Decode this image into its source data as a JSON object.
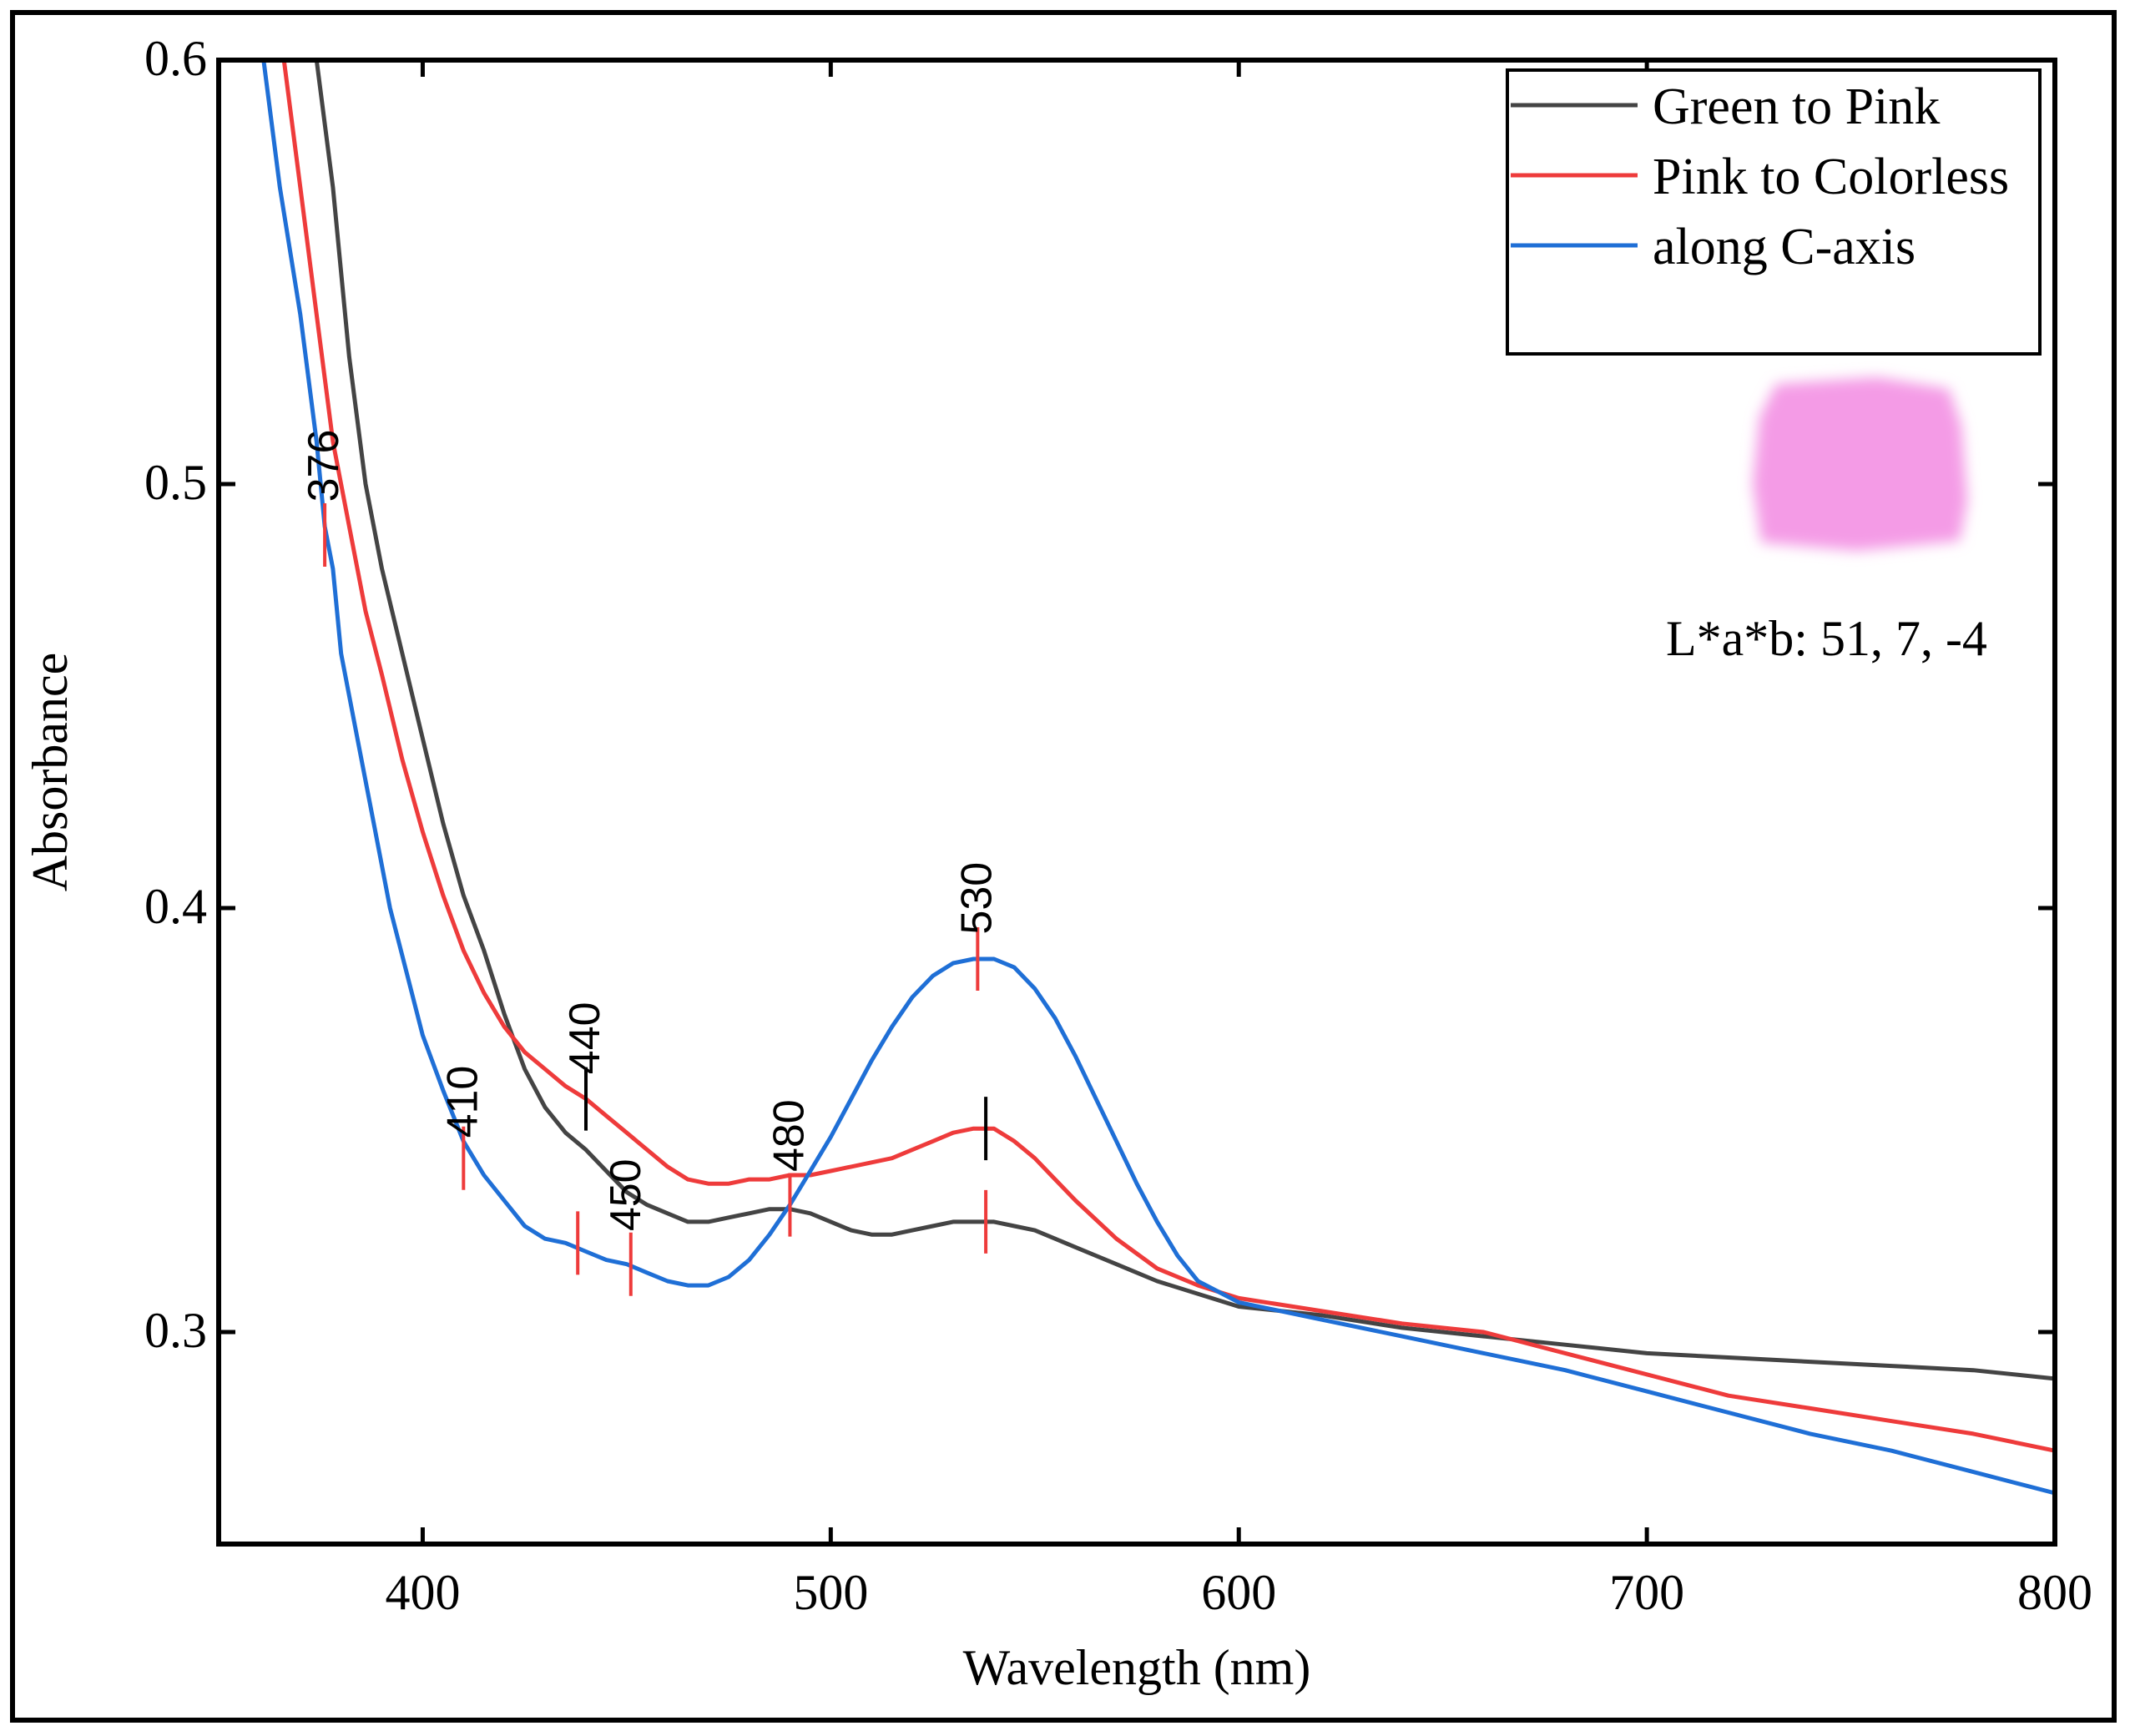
{
  "chart_data": {
    "type": "line",
    "xlabel": "Wavelength (nm)",
    "ylabel": "Absorbance",
    "xlim": [
      350,
      800
    ],
    "ylim": [
      0.25,
      0.6
    ],
    "xticks": [
      400,
      500,
      600,
      700,
      800
    ],
    "xtick_labels": [
      "400",
      "500",
      "600",
      "700",
      "800"
    ],
    "yticks": [
      0.3,
      0.4,
      0.5,
      0.6
    ],
    "ytick_labels": [
      "0.3",
      "0.4",
      "0.5",
      "0.6"
    ],
    "legend_position": "top-right",
    "series": [
      {
        "name": "Green to Pink",
        "color": "#444444",
        "x": [
          374,
          378,
          382,
          386,
          390,
          395,
          400,
          405,
          410,
          415,
          420,
          425,
          430,
          435,
          440,
          445,
          450,
          455,
          460,
          465,
          470,
          475,
          480,
          485,
          490,
          495,
          500,
          505,
          510,
          515,
          520,
          525,
          530,
          535,
          540,
          545,
          550,
          555,
          560,
          570,
          580,
          590,
          600,
          620,
          640,
          660,
          680,
          700,
          720,
          740,
          760,
          780,
          800
        ],
        "y": [
          0.6,
          0.57,
          0.53,
          0.5,
          0.48,
          0.46,
          0.44,
          0.42,
          0.403,
          0.39,
          0.375,
          0.362,
          0.353,
          0.347,
          0.343,
          0.338,
          0.333,
          0.33,
          0.328,
          0.326,
          0.326,
          0.327,
          0.328,
          0.329,
          0.329,
          0.328,
          0.326,
          0.324,
          0.323,
          0.323,
          0.324,
          0.325,
          0.326,
          0.326,
          0.326,
          0.325,
          0.324,
          0.322,
          0.32,
          0.316,
          0.312,
          0.309,
          0.306,
          0.304,
          0.301,
          0.299,
          0.297,
          0.295,
          0.294,
          0.293,
          0.292,
          0.291,
          0.289
        ]
      },
      {
        "name": "Pink to Colorless",
        "color": "#ee3b3b",
        "x": [
          366,
          370,
          374,
          378,
          382,
          386,
          390,
          395,
          400,
          405,
          410,
          415,
          420,
          425,
          430,
          435,
          440,
          445,
          450,
          455,
          460,
          465,
          470,
          475,
          480,
          485,
          490,
          495,
          500,
          505,
          510,
          515,
          520,
          525,
          530,
          535,
          540,
          545,
          550,
          555,
          560,
          570,
          580,
          590,
          600,
          620,
          640,
          660,
          680,
          700,
          720,
          740,
          760,
          780,
          800
        ],
        "y": [
          0.6,
          0.57,
          0.54,
          0.51,
          0.49,
          0.47,
          0.455,
          0.435,
          0.418,
          0.403,
          0.39,
          0.38,
          0.372,
          0.366,
          0.362,
          0.358,
          0.355,
          0.351,
          0.347,
          0.343,
          0.339,
          0.336,
          0.335,
          0.335,
          0.336,
          0.336,
          0.337,
          0.337,
          0.338,
          0.339,
          0.34,
          0.341,
          0.343,
          0.345,
          0.347,
          0.348,
          0.348,
          0.345,
          0.341,
          0.336,
          0.331,
          0.322,
          0.315,
          0.311,
          0.308,
          0.305,
          0.302,
          0.3,
          0.295,
          0.29,
          0.285,
          0.282,
          0.279,
          0.276,
          0.272
        ]
      },
      {
        "name": "along C-axis",
        "color": "#1f6fd6",
        "x": [
          361,
          365,
          370,
          374,
          376,
          378,
          380,
          384,
          388,
          392,
          396,
          400,
          405,
          410,
          415,
          420,
          425,
          430,
          435,
          440,
          445,
          450,
          455,
          460,
          465,
          470,
          475,
          480,
          485,
          490,
          495,
          500,
          505,
          510,
          515,
          520,
          525,
          530,
          535,
          540,
          545,
          550,
          555,
          560,
          565,
          570,
          575,
          580,
          585,
          590,
          600,
          620,
          640,
          660,
          680,
          700,
          720,
          740,
          760,
          780,
          800
        ],
        "y": [
          0.6,
          0.57,
          0.54,
          0.51,
          0.49,
          0.48,
          0.46,
          0.44,
          0.42,
          0.4,
          0.385,
          0.37,
          0.357,
          0.345,
          0.337,
          0.331,
          0.325,
          0.322,
          0.321,
          0.319,
          0.317,
          0.316,
          0.314,
          0.312,
          0.311,
          0.311,
          0.313,
          0.317,
          0.323,
          0.33,
          0.338,
          0.346,
          0.355,
          0.364,
          0.372,
          0.379,
          0.384,
          0.387,
          0.388,
          0.388,
          0.386,
          0.381,
          0.374,
          0.365,
          0.355,
          0.345,
          0.335,
          0.326,
          0.318,
          0.312,
          0.307,
          0.303,
          0.299,
          0.295,
          0.291,
          0.286,
          0.281,
          0.276,
          0.272,
          0.267,
          0.262
        ]
      }
    ],
    "annotations": [
      {
        "text": "376",
        "x": 376,
        "y": 0.495
      },
      {
        "text": "410",
        "x": 410,
        "y": 0.345
      },
      {
        "text": "440",
        "x": 440,
        "y": 0.36
      },
      {
        "text": "450",
        "x": 450,
        "y": 0.323
      },
      {
        "text": "480",
        "x": 490,
        "y": 0.337
      },
      {
        "text": "530",
        "x": 536,
        "y": 0.393
      }
    ],
    "marks": [
      {
        "x": 376,
        "y": 0.488,
        "color": "#ee3b3b"
      },
      {
        "x": 410,
        "y": 0.341,
        "color": "#ee3b3b"
      },
      {
        "x": 440,
        "y": 0.355,
        "color": "#000000"
      },
      {
        "x": 438,
        "y": 0.321,
        "color": "#ee3b3b"
      },
      {
        "x": 451,
        "y": 0.316,
        "color": "#ee3b3b"
      },
      {
        "x": 490,
        "y": 0.33,
        "color": "#ee3b3b"
      },
      {
        "x": 536,
        "y": 0.388,
        "color": "#ee3b3b"
      },
      {
        "x": 538,
        "y": 0.348,
        "color": "#000000"
      },
      {
        "x": 538,
        "y": 0.326,
        "color": "#ee3b3b"
      }
    ]
  },
  "sample": {
    "color": "#f49be6",
    "lab_label": "L*a*b: 51, 7, -4"
  }
}
